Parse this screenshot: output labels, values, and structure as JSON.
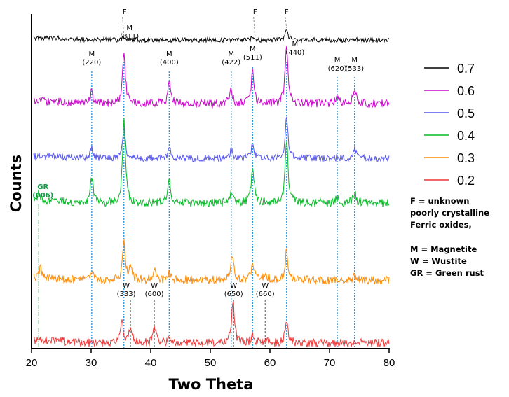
{
  "chart_data": {
    "type": "line",
    "xlabel": "Two Theta",
    "ylabel": "Counts",
    "xlim": [
      20,
      80
    ],
    "xticks": [
      "20",
      "30",
      "40",
      "50",
      "60",
      "70",
      "80"
    ],
    "series": [
      {
        "name": "0.7",
        "color": "#000000",
        "peaks": [
          [
            35.5,
            4
          ],
          [
            57.2,
            4
          ],
          [
            62.8,
            14
          ]
        ]
      },
      {
        "name": "0.6",
        "color": "#cc00cc",
        "peaks": [
          [
            30.1,
            18
          ],
          [
            35.5,
            75
          ],
          [
            43.1,
            28
          ],
          [
            53.5,
            18
          ],
          [
            57.1,
            48
          ],
          [
            62.8,
            88
          ],
          [
            71.3,
            12
          ],
          [
            74.2,
            22
          ]
        ]
      },
      {
        "name": "0.5",
        "color": "#5555ee",
        "peaks": [
          [
            30.1,
            14
          ],
          [
            35.5,
            42
          ],
          [
            43.1,
            14
          ],
          [
            53.5,
            12
          ],
          [
            57.1,
            22
          ],
          [
            62.8,
            58
          ],
          [
            74.2,
            14
          ]
        ]
      },
      {
        "name": "0.4",
        "color": "#00bb22",
        "peaks": [
          [
            21.2,
            14
          ],
          [
            30.1,
            36
          ],
          [
            35.5,
            120
          ],
          [
            43.1,
            38
          ],
          [
            53.5,
            14
          ],
          [
            57.1,
            52
          ],
          [
            62.8,
            92
          ],
          [
            71.3,
            8
          ],
          [
            74.2,
            16
          ]
        ]
      },
      {
        "name": "0.3",
        "color": "#ff8800",
        "peaks": [
          [
            21.5,
            14
          ],
          [
            30.1,
            12
          ],
          [
            35.5,
            52
          ],
          [
            36.6,
            18
          ],
          [
            40.6,
            14
          ],
          [
            43.1,
            10
          ],
          [
            53.7,
            38
          ],
          [
            57.1,
            24
          ],
          [
            59.2,
            10
          ],
          [
            62.8,
            42
          ],
          [
            74.2,
            6
          ]
        ]
      },
      {
        "name": "0.2",
        "color": "#ee3333",
        "peaks": [
          [
            21.2,
            8
          ],
          [
            35.2,
            30
          ],
          [
            36.6,
            20
          ],
          [
            40.6,
            24
          ],
          [
            43.1,
            6
          ],
          [
            53.8,
            58
          ],
          [
            57.1,
            12
          ],
          [
            59.2,
            6
          ],
          [
            62.8,
            32
          ]
        ]
      }
    ],
    "annotations": [
      {
        "label": "F",
        "x": 35.5
      },
      {
        "label": "F",
        "x": 57.5
      },
      {
        "label": "F",
        "x": 62.8
      },
      {
        "label": "M",
        "sub": "(220)",
        "x": 30.1
      },
      {
        "label": "M",
        "sub": "(311)",
        "x": 35.5
      },
      {
        "label": "M",
        "sub": "(400)",
        "x": 43.1
      },
      {
        "label": "M",
        "sub": "(422)",
        "x": 53.5
      },
      {
        "label": "M",
        "sub": "(511)",
        "x": 57.1
      },
      {
        "label": "M",
        "sub": "(440)",
        "x": 62.8
      },
      {
        "label": "M",
        "sub": "(620)",
        "x": 71.3
      },
      {
        "label": "M",
        "sub": "(533)",
        "x": 74.2
      },
      {
        "label": "W",
        "sub": "(333)",
        "x": 36.6
      },
      {
        "label": "W",
        "sub": "(600)",
        "x": 40.6
      },
      {
        "label": "W",
        "sub": "(650)",
        "x": 53.9
      },
      {
        "label": "W",
        "sub": "(660)",
        "x": 59.2
      },
      {
        "label": "GR",
        "sub": "(006)",
        "x": 21.2
      }
    ],
    "notes": [
      "F = unknown",
      "poorly crystalline",
      "Ferric oxides,",
      "M = Magnetite",
      "W = Wustite",
      "GR = Green rust"
    ],
    "legend_position": "right",
    "grid": false
  }
}
